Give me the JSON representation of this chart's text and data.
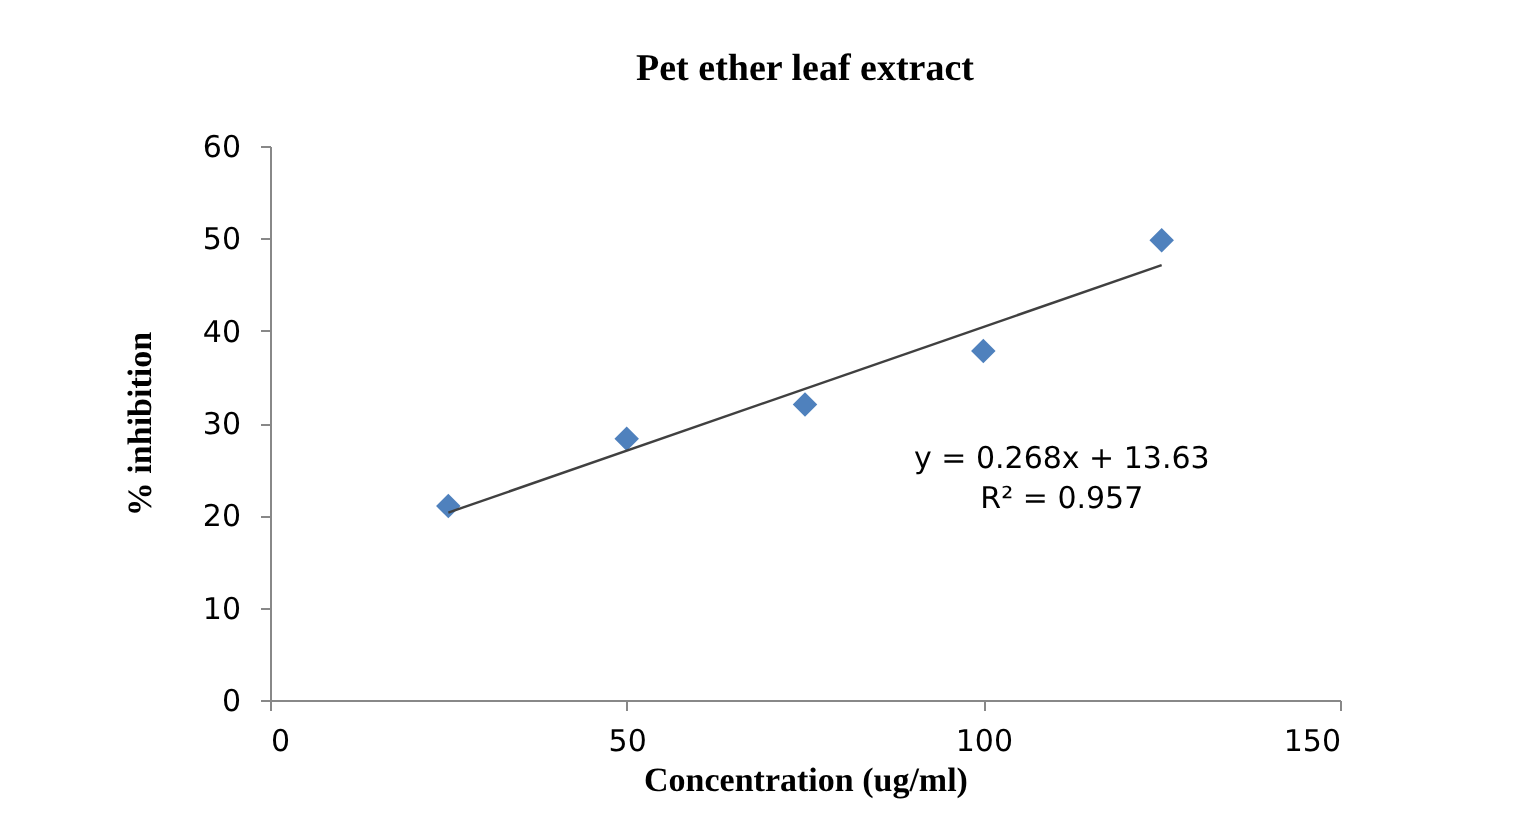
{
  "chart_data": {
    "type": "scatter",
    "title": "Pet ether leaf extract",
    "xlabel": "Concentration (ug/ml)",
    "ylabel": "% inhibition",
    "xlim": [
      0,
      150
    ],
    "xticks": [
      0,
      50,
      100,
      150
    ],
    "ylim": [
      0,
      60
    ],
    "yticks": [
      0,
      10,
      20,
      30,
      40,
      50,
      60
    ],
    "grid": false,
    "marker": "diamond",
    "series": [
      {
        "color": "#4f81bd",
        "x": [
          25,
          50,
          75,
          100,
          125
        ],
        "values": [
          21.0,
          28.3,
          32.0,
          37.8,
          49.8
        ]
      },
      {
        "type": "line",
        "color": "#404040",
        "x": [
          25,
          125
        ],
        "values": [
          20.3,
          47.1
        ],
        "line_style": "solid",
        "marker": "none"
      }
    ],
    "annotations": [
      "y = 0.268x + 13.63",
      "R² = 0.957"
    ]
  }
}
